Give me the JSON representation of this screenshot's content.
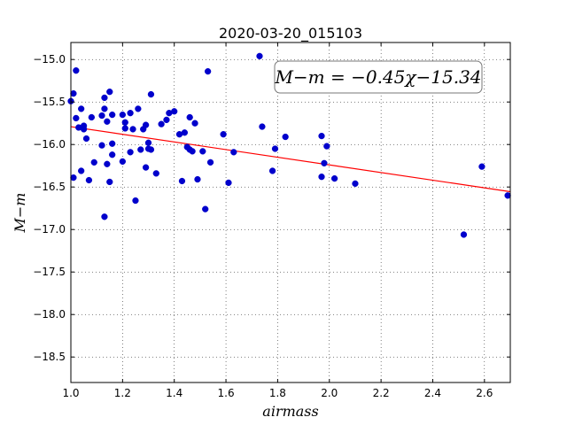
{
  "chart_data": {
    "type": "scatter",
    "title": "2020-03-20_015103",
    "xlabel": "airmass",
    "ylabel": "M−m",
    "xlim": [
      1.0,
      2.7
    ],
    "ylim": [
      -18.8,
      -14.8
    ],
    "y_inverted": true,
    "grid": true,
    "xticks": [
      1.0,
      1.2,
      1.4,
      1.6,
      1.8,
      2.0,
      2.2,
      2.4,
      2.6
    ],
    "xtick_labels": [
      "1.0",
      "1.2",
      "1.4",
      "1.6",
      "1.8",
      "2.0",
      "2.2",
      "2.4",
      "2.6"
    ],
    "yticks": [
      -15.0,
      -15.5,
      -16.0,
      -16.5,
      -17.0,
      -17.5,
      -18.0,
      -18.5
    ],
    "ytick_labels": [
      "−15.0",
      "−15.5",
      "−16.0",
      "−16.5",
      "−17.0",
      "−17.5",
      "−18.0",
      "−18.5"
    ],
    "annotation": "M−m = −0.45χ−15.34",
    "fit": {
      "slope": -0.45,
      "intercept": -15.34,
      "color": "#ff0000"
    },
    "point_color": "#0000cc",
    "points": [
      {
        "x": 1.0,
        "y": -15.49
      },
      {
        "x": 1.01,
        "y": -15.4
      },
      {
        "x": 1.01,
        "y": -16.39
      },
      {
        "x": 1.02,
        "y": -15.13
      },
      {
        "x": 1.02,
        "y": -15.69
      },
      {
        "x": 1.03,
        "y": -15.8
      },
      {
        "x": 1.04,
        "y": -15.58
      },
      {
        "x": 1.04,
        "y": -16.31
      },
      {
        "x": 1.05,
        "y": -15.78
      },
      {
        "x": 1.05,
        "y": -15.82
      },
      {
        "x": 1.06,
        "y": -15.93
      },
      {
        "x": 1.07,
        "y": -16.42
      },
      {
        "x": 1.08,
        "y": -15.68
      },
      {
        "x": 1.09,
        "y": -16.21
      },
      {
        "x": 1.12,
        "y": -15.66
      },
      {
        "x": 1.12,
        "y": -16.01
      },
      {
        "x": 1.13,
        "y": -15.58
      },
      {
        "x": 1.13,
        "y": -15.45
      },
      {
        "x": 1.13,
        "y": -16.85
      },
      {
        "x": 1.14,
        "y": -15.73
      },
      {
        "x": 1.14,
        "y": -16.23
      },
      {
        "x": 1.15,
        "y": -16.44
      },
      {
        "x": 1.15,
        "y": -15.38
      },
      {
        "x": 1.16,
        "y": -15.65
      },
      {
        "x": 1.16,
        "y": -15.99
      },
      {
        "x": 1.16,
        "y": -16.12
      },
      {
        "x": 1.2,
        "y": -15.65
      },
      {
        "x": 1.2,
        "y": -16.2
      },
      {
        "x": 1.21,
        "y": -15.74
      },
      {
        "x": 1.21,
        "y": -15.81
      },
      {
        "x": 1.23,
        "y": -15.63
      },
      {
        "x": 1.23,
        "y": -16.09
      },
      {
        "x": 1.24,
        "y": -15.82
      },
      {
        "x": 1.25,
        "y": -16.66
      },
      {
        "x": 1.26,
        "y": -15.58
      },
      {
        "x": 1.27,
        "y": -16.06
      },
      {
        "x": 1.28,
        "y": -15.82
      },
      {
        "x": 1.29,
        "y": -15.77
      },
      {
        "x": 1.29,
        "y": -16.27
      },
      {
        "x": 1.3,
        "y": -16.05
      },
      {
        "x": 1.3,
        "y": -15.98
      },
      {
        "x": 1.31,
        "y": -16.06
      },
      {
        "x": 1.31,
        "y": -15.41
      },
      {
        "x": 1.33,
        "y": -16.34
      },
      {
        "x": 1.35,
        "y": -15.76
      },
      {
        "x": 1.37,
        "y": -15.71
      },
      {
        "x": 1.38,
        "y": -15.63
      },
      {
        "x": 1.4,
        "y": -15.61
      },
      {
        "x": 1.42,
        "y": -15.88
      },
      {
        "x": 1.43,
        "y": -16.43
      },
      {
        "x": 1.44,
        "y": -15.86
      },
      {
        "x": 1.45,
        "y": -16.03
      },
      {
        "x": 1.46,
        "y": -15.68
      },
      {
        "x": 1.46,
        "y": -16.06
      },
      {
        "x": 1.47,
        "y": -16.08
      },
      {
        "x": 1.48,
        "y": -15.75
      },
      {
        "x": 1.49,
        "y": -16.41
      },
      {
        "x": 1.51,
        "y": -16.08
      },
      {
        "x": 1.52,
        "y": -16.76
      },
      {
        "x": 1.53,
        "y": -15.14
      },
      {
        "x": 1.54,
        "y": -16.21
      },
      {
        "x": 1.59,
        "y": -15.88
      },
      {
        "x": 1.61,
        "y": -16.45
      },
      {
        "x": 1.63,
        "y": -16.09
      },
      {
        "x": 1.73,
        "y": -14.96
      },
      {
        "x": 1.74,
        "y": -15.79
      },
      {
        "x": 1.78,
        "y": -16.31
      },
      {
        "x": 1.79,
        "y": -16.05
      },
      {
        "x": 1.83,
        "y": -15.91
      },
      {
        "x": 1.97,
        "y": -15.9
      },
      {
        "x": 1.97,
        "y": -16.38
      },
      {
        "x": 1.98,
        "y": -16.22
      },
      {
        "x": 1.99,
        "y": -16.02
      },
      {
        "x": 2.02,
        "y": -16.4
      },
      {
        "x": 2.1,
        "y": -16.46
      },
      {
        "x": 2.52,
        "y": -17.06
      },
      {
        "x": 2.59,
        "y": -16.26
      },
      {
        "x": 2.69,
        "y": -16.6
      }
    ]
  }
}
